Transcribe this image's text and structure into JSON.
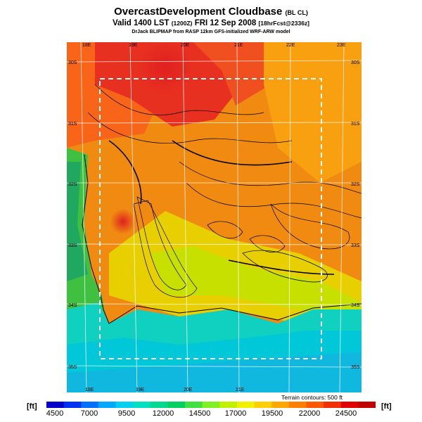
{
  "header": {
    "title": "OvercastDevelopment Cloudbase",
    "title_suffix": "(BL CL)",
    "valid_main": "Valid 1400 LST",
    "valid_zulu": "(1200Z)",
    "valid_date": "FRI 12 Sep 2008",
    "valid_fcst": "[18hrFcst@2336z]",
    "credit": "DrJack BLIPMAP from RASP 12km GFS-initialized WRF-ARW model"
  },
  "map": {
    "lon_labels": [
      "18E",
      "19E",
      "20E",
      "21E",
      "22E",
      "23E"
    ],
    "lat_labels": [
      "30S",
      "31S",
      "32S",
      "33S",
      "34S",
      "35S"
    ],
    "colors": {
      "ocean": "#00c8d0",
      "land_high": "#f08010",
      "land_low": "#20b050",
      "ridge": "#d82020",
      "domain_box": "#ffffff"
    }
  },
  "legend": {
    "terrain_note": "Terrain contours: 500 ft",
    "unit_left": "[ft]",
    "unit_right": "[ft]",
    "ticks": [
      "4500",
      "7000",
      "9500",
      "12000",
      "14500",
      "17000",
      "19500",
      "22000",
      "24500"
    ],
    "colors": [
      "#0000c8",
      "#0030f0",
      "#0070ff",
      "#00a8ff",
      "#00d0f0",
      "#00e0c0",
      "#00d890",
      "#00d060",
      "#40e040",
      "#80f020",
      "#c0f000",
      "#f0f000",
      "#ffd000",
      "#ffa800",
      "#ff8000",
      "#ff5800",
      "#f03000",
      "#e00000",
      "#c00000"
    ]
  }
}
